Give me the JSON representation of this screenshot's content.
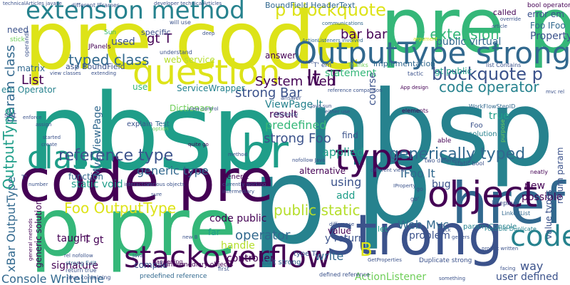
{
  "cloud": {
    "palette": {
      "dark_purple": "#440154",
      "indigo": "#3b528b",
      "blue": "#31688e",
      "teal_blue": "#26828e",
      "teal": "#1f9e89",
      "green": "#35b779",
      "light_green": "#6ece58",
      "yellow_green": "#b5de2b",
      "yellow": "#dde318"
    },
    "words": [
      {
        "text": "nbsp",
        "color": "#1f9e89"
      },
      {
        "text": "nbsp",
        "color": "#26828e"
      },
      {
        "text": "pre code",
        "color": "#dde318"
      },
      {
        "text": "pre p",
        "color": "#35b779"
      },
      {
        "text": "p",
        "color": "#26828e"
      },
      {
        "text": "p",
        "color": "#26828e"
      },
      {
        "text": "code pre",
        "color": "#440154"
      },
      {
        "text": "p pre",
        "color": "#35b779"
      },
      {
        "text": "strong",
        "color": "#3b528b"
      },
      {
        "text": "href",
        "color": "#31688e"
      },
      {
        "text": "extension method",
        "color": "#26828e"
      },
      {
        "text": "question",
        "color": "#dde318"
      },
      {
        "text": "OutputType strong",
        "color": "#31688e"
      },
      {
        "text": "object",
        "color": "#440154"
      },
      {
        "text": "stackoverflow",
        "color": "#440154"
      },
      {
        "text": "br",
        "color": "#1f9e89"
      },
      {
        "text": "type",
        "color": "#440154"
      },
      {
        "text": "class",
        "color": "#1f9e89"
      },
      {
        "text": "code",
        "color": "#26828e"
      },
      {
        "text": "lt T",
        "color": "#440154"
      },
      {
        "text": "p blockquote",
        "color": "#dde318"
      },
      {
        "text": "blockquote p",
        "color": "#3b528b"
      },
      {
        "text": "code operator",
        "color": "#26828e"
      },
      {
        "text": "c extension",
        "color": "#35b779"
      },
      {
        "text": "bar bar",
        "color": "#440154"
      },
      {
        "text": "typed class",
        "color": "#31688e"
      },
      {
        "text": "reference type",
        "color": "#3b528b"
      },
      {
        "text": "generic type",
        "color": "#31688e"
      },
      {
        "text": "generically typed",
        "color": "#31688e"
      },
      {
        "text": "Foo OutputType",
        "color": "#dde318"
      },
      {
        "text": "public static",
        "color": "#b5de2b"
      },
      {
        "text": "IFoo lt",
        "color": "#31688e"
      },
      {
        "text": "System Web",
        "color": "#440154"
      },
      {
        "text": "strong Bar",
        "color": "#3b528b"
      },
      {
        "text": "strong Foo",
        "color": "#3b528b"
      },
      {
        "text": "predefined",
        "color": "#35b779"
      },
      {
        "text": "ViewPage lt",
        "color": "#26828e"
      },
      {
        "text": "Console WriteLine",
        "color": "#31688e"
      },
      {
        "text": "operator",
        "color": "#31688e"
      },
      {
        "text": "controller",
        "color": "#440154"
      },
      {
        "text": "Web Mvc",
        "color": "#31688e"
      },
      {
        "text": "ActionListener",
        "color": "#6ece58"
      },
      {
        "text": "user defined",
        "color": "#3b528b"
      },
      {
        "text": "way",
        "color": "#3b528b"
      },
      {
        "text": "B",
        "color": "#dde318"
      },
      {
        "text": "applied",
        "color": "#1f9e89"
      },
      {
        "text": "using",
        "color": "#3b528b"
      },
      {
        "text": "value",
        "color": "#440154"
      },
      {
        "text": "public virtual",
        "color": "#31688e"
      },
      {
        "text": "Property",
        "color": "#3b528b"
      },
      {
        "text": "Foo IFoo",
        "color": "#31688e"
      },
      {
        "text": "gt T",
        "color": "#440154"
      },
      {
        "text": "ServiceWrapper",
        "color": "#26828e"
      },
      {
        "text": "xBar OutputType",
        "color": "#31688e"
      },
      {
        "text": "List",
        "color": "#440154"
      },
      {
        "text": "param class",
        "color": "#31688e"
      },
      {
        "text": "OutputType",
        "color": "#1f9e89"
      },
      {
        "text": "Mvc ViewPage",
        "color": "#31688e"
      },
      {
        "text": "T gt",
        "color": "#440154"
      },
      {
        "text": "taught",
        "color": "#440154"
      },
      {
        "text": "signature",
        "color": "#440154"
      },
      {
        "text": "handle",
        "color": "#b5de2b"
      },
      {
        "text": "compile",
        "color": "#3b528b"
      },
      {
        "text": "function",
        "color": "#31688e"
      },
      {
        "text": "static void",
        "color": "#1f9e89"
      },
      {
        "text": "code public",
        "color": "#440154"
      },
      {
        "text": "write",
        "color": "#31688e"
      },
      {
        "text": "problem",
        "color": "#3b528b"
      },
      {
        "text": "result",
        "color": "#440154"
      },
      {
        "text": "course",
        "color": "#3b528b"
      },
      {
        "text": "answer",
        "color": "#440154"
      },
      {
        "text": "statement",
        "color": "#35b779"
      },
      {
        "text": "find",
        "color": "#3b528b"
      },
      {
        "text": "add",
        "color": "#1f9e89"
      },
      {
        "text": "true",
        "color": "#1f9e89"
      },
      {
        "text": "bug",
        "color": "#3b528b"
      },
      {
        "text": "new",
        "color": "#440154"
      },
      {
        "text": "possible",
        "color": "#440154"
      },
      {
        "text": "return param",
        "color": "#3b528b"
      },
      {
        "text": "value types",
        "color": "#3b528b"
      },
      {
        "text": "used",
        "color": "#3b528b"
      },
      {
        "text": "need",
        "color": "#3b528b"
      },
      {
        "text": "web service",
        "color": "#b5de2b"
      },
      {
        "text": "matrix",
        "color": "#31688e"
      },
      {
        "text": "use",
        "color": "#35b779"
      },
      {
        "text": "set",
        "color": "#3b528b"
      },
      {
        "text": "Dictionary",
        "color": "#6ece58"
      },
      {
        "text": "em Operator",
        "color": "#26828e"
      },
      {
        "text": "asp BoundField",
        "color": "#3b528b"
      },
      {
        "text": "BoundField HeaderText",
        "color": "#31688e"
      },
      {
        "text": "gt public",
        "color": "#1f9e89"
      },
      {
        "text": "implementation",
        "color": "#31688e"
      },
      {
        "text": "Sun",
        "color": "#35b779"
      },
      {
        "text": "specific",
        "color": "#3b528b"
      },
      {
        "text": "JPanels",
        "color": "#440154"
      },
      {
        "text": "called",
        "color": "#440154"
      },
      {
        "text": "error em",
        "color": "#3b528b"
      },
      {
        "text": "bool operator",
        "color": "#440154"
      },
      {
        "text": "y return",
        "color": "#3b528b"
      },
      {
        "text": "solution",
        "color": "#26828e"
      },
      {
        "text": "generic solution",
        "color": "#440154"
      },
      {
        "text": "alternative",
        "color": "#440154"
      },
      {
        "text": "far",
        "color": "#1f9e89"
      },
      {
        "text": "let",
        "color": "#1f9e89"
      },
      {
        "text": "Test",
        "color": "#31688e"
      },
      {
        "text": "Edit strong",
        "color": "#31688e"
      },
      {
        "text": "type T'",
        "color": "#3b528b"
      },
      {
        "text": "param Console",
        "color": "#26828e"
      },
      {
        "text": "defined reference",
        "color": "#3b528b"
      },
      {
        "text": "predefined reference",
        "color": "#31688e"
      },
      {
        "text": "intermediary objects",
        "color": "#440154"
      },
      {
        "text": "Duplicate strong",
        "color": "#3b528b"
      },
      {
        "text": "explain",
        "color": "#3b528b"
      },
      {
        "text": "T' em",
        "color": "#3b528b"
      },
      {
        "text": "Foo",
        "color": "#3b528b"
      },
      {
        "text": "generic",
        "color": "#440154"
      },
      {
        "text": "elements",
        "color": "#440154"
      },
      {
        "text": "keeping",
        "color": "#3b528b"
      },
      {
        "text": "Possible Duplicate",
        "color": "#26828e"
      },
      {
        "text": "LinkedList",
        "color": "#31688e"
      },
      {
        "text": "strong Edit",
        "color": "#31688e"
      },
      {
        "text": "return true",
        "color": "#3b528b"
      },
      {
        "text": "Java containing",
        "color": "#3b528b"
      },
      {
        "text": "neatly",
        "color": "#440154"
      },
      {
        "text": "WorkFlowStepID",
        "color": "#31688e"
      },
      {
        "text": "static bool",
        "color": "#3b528b"
      },
      {
        "text": "able",
        "color": "#440154"
      },
      {
        "text": "purpose",
        "color": "#6ece58"
      },
      {
        "text": "two different",
        "color": "#3b528b"
      },
      {
        "text": "answer",
        "color": "#3b528b"
      },
      {
        "text": "quite go",
        "color": "#440154"
      },
      {
        "text": "reference comparison",
        "color": "#3b528b"
      },
      {
        "text": "Thanks",
        "color": "#6ece58"
      },
      {
        "text": "tactic",
        "color": "#3b528b"
      },
      {
        "text": "list Contains",
        "color": "#3b528b"
      },
      {
        "text": "understand",
        "color": "#3b528b"
      },
      {
        "text": "will use",
        "color": "#3b528b"
      },
      {
        "text": "communications",
        "color": "#31688e"
      },
      {
        "text": "technicalArticles javase",
        "color": "#3b528b"
      },
      {
        "text": "different JFrames",
        "color": "#3b528b"
      },
      {
        "text": "developer technicalArticles",
        "color": "#3b528b"
      },
      {
        "text": "article",
        "color": "#3b528b"
      },
      {
        "text": "override",
        "color": "#3b528b"
      },
      {
        "text": "argument",
        "color": "#dde318"
      },
      {
        "text": "extending",
        "color": "#3b528b"
      },
      {
        "text": "view classes",
        "color": "#3b528b"
      },
      {
        "text": "case",
        "color": "#3b528b"
      },
      {
        "text": "deep",
        "color": "#3b528b"
      },
      {
        "text": "mvc rel",
        "color": "#3b528b"
      },
      {
        "text": "App design",
        "color": "#440154"
      },
      {
        "text": "started",
        "color": "#3b528b"
      },
      {
        "text": "create",
        "color": "#3b528b"
      },
      {
        "text": "assign",
        "color": "#3b528b"
      },
      {
        "text": "enforce",
        "color": "#3b528b"
      },
      {
        "text": "operands",
        "color": "#3b528b"
      },
      {
        "text": "number",
        "color": "#3b528b"
      },
      {
        "text": "option",
        "color": "#6ece58"
      },
      {
        "text": "efficiently",
        "color": "#3b528b"
      },
      {
        "text": "currently working",
        "color": "#3b528b"
      },
      {
        "text": "intermediary",
        "color": "#3b528b"
      },
      {
        "text": "various objects",
        "color": "#3b528b"
      },
      {
        "text": "Java",
        "color": "#3b528b"
      },
      {
        "text": "first",
        "color": "#3b528b"
      },
      {
        "text": "happening",
        "color": "#440154"
      },
      {
        "text": "project written",
        "color": "#3b528b"
      },
      {
        "text": "something",
        "color": "#3b528b"
      },
      {
        "text": "facing",
        "color": "#3b528b"
      },
      {
        "text": "getters",
        "color": "#3b528b"
      },
      {
        "text": "back",
        "color": "#3b528b"
      },
      {
        "text": "GetProperties",
        "color": "#3b528b"
      },
      {
        "text": "difference",
        "color": "#3b528b"
      },
      {
        "text": "rel nofollow",
        "color": "#3b528b"
      },
      {
        "text": "general methods",
        "color": "#440154"
      },
      {
        "text": "new B",
        "color": "#3b528b"
      },
      {
        "text": "ActionListeners involved",
        "color": "#31688e"
      },
      {
        "text": "interaction",
        "color": "#3b528b"
      },
      {
        "text": "go'",
        "color": "#3b528b"
      },
      {
        "text": "go",
        "color": "#3b528b"
      },
      {
        "text": "T'",
        "color": "#3b528b"
      },
      {
        "text": "sure",
        "color": "#3b528b"
      },
      {
        "text": "IProperty",
        "color": "#3b528b"
      },
      {
        "text": "method",
        "color": "#3b528b"
      },
      {
        "text": "view control",
        "color": "#3b528b"
      },
      {
        "text": "java sun",
        "color": "#3b528b"
      },
      {
        "text": "either use",
        "color": "#3b528b"
      },
      {
        "text": "different view",
        "color": "#3b528b"
      },
      {
        "text": "nofollow Java",
        "color": "#3b528b"
      },
      {
        "text": "stick",
        "color": "#6ece58"
      }
    ]
  }
}
